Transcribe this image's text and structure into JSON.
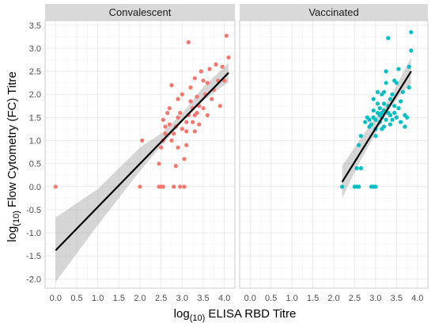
{
  "chart_data": {
    "type": "scatter",
    "xlabel": {
      "prefix": "log",
      "sub": "(10)",
      "rest": " ELISA RBD Titre"
    },
    "ylabel": {
      "prefix": "log",
      "sub": "(10)",
      "rest": " Flow Cytometry (FC) Titre"
    },
    "xlim": [
      -0.25,
      4.25
    ],
    "ylim": [
      -2.2,
      3.6
    ],
    "x_ticks": [
      0.0,
      0.5,
      1.0,
      1.5,
      2.0,
      2.5,
      3.0,
      3.5,
      4.0
    ],
    "x_tick_labels": [
      "0.0",
      "0.5",
      "1.0",
      "1.5",
      "2.0",
      "2.5",
      "3.0",
      "3.5",
      "4.0"
    ],
    "y_ticks": [
      -2.0,
      -1.5,
      -1.0,
      -0.5,
      0.0,
      0.5,
      1.0,
      1.5,
      2.0,
      2.5,
      3.0,
      3.5
    ],
    "y_tick_labels": [
      "-2.0",
      "-1.5",
      "-1.0",
      "-0.5",
      "0.0",
      "0.5",
      "1.0",
      "1.5",
      "2.0",
      "2.5",
      "3.0",
      "3.5"
    ],
    "grid": true,
    "panels": [
      {
        "name": "Convalescent",
        "color": "#F8766D",
        "fit": {
          "x": [
            0.0,
            4.1
          ],
          "y": [
            -1.38,
            2.47
          ]
        },
        "band": {
          "x": [
            0.0,
            1.0,
            2.0,
            2.5,
            3.0,
            3.5,
            4.1
          ],
          "lower": [
            -2.07,
            -0.83,
            0.34,
            0.88,
            1.4,
            1.86,
            2.27
          ],
          "upper": [
            -0.67,
            -0.05,
            0.85,
            1.15,
            1.58,
            2.16,
            2.68
          ]
        },
        "points": [
          [
            0.0,
            0.0
          ],
          [
            2.0,
            0.0
          ],
          [
            2.05,
            1.0
          ],
          [
            2.45,
            0.0
          ],
          [
            2.5,
            0.0
          ],
          [
            2.55,
            0.0
          ],
          [
            2.45,
            0.5
          ],
          [
            2.5,
            0.85
          ],
          [
            2.55,
            1.0
          ],
          [
            2.6,
            1.15
          ],
          [
            2.6,
            1.3
          ],
          [
            2.65,
            1.6
          ],
          [
            2.7,
            1.35
          ],
          [
            2.75,
            2.2
          ],
          [
            2.8,
            0.0
          ],
          [
            2.85,
            0.45
          ],
          [
            2.75,
            1.0
          ],
          [
            2.8,
            1.15
          ],
          [
            2.85,
            1.3
          ],
          [
            2.9,
            1.5
          ],
          [
            2.9,
            1.9
          ],
          [
            2.95,
            0.0
          ],
          [
            2.9,
            0.85
          ],
          [
            2.95,
            1.6
          ],
          [
            3.0,
            1.25
          ],
          [
            3.0,
            2.0
          ],
          [
            3.05,
            0.0
          ],
          [
            3.05,
            0.6
          ],
          [
            3.1,
            0.9
          ],
          [
            3.1,
            1.4
          ],
          [
            3.15,
            1.55
          ],
          [
            3.15,
            3.13
          ],
          [
            3.2,
            1.85
          ],
          [
            3.2,
            2.15
          ],
          [
            3.25,
            1.4
          ],
          [
            3.25,
            1.7
          ],
          [
            3.3,
            1.55
          ],
          [
            3.3,
            2.35
          ],
          [
            3.35,
            1.6
          ],
          [
            3.35,
            1.95
          ],
          [
            3.4,
            1.35
          ],
          [
            3.4,
            1.75
          ],
          [
            3.45,
            2.5
          ],
          [
            3.5,
            1.7
          ],
          [
            3.5,
            2.3
          ],
          [
            3.55,
            2.0
          ],
          [
            3.6,
            1.55
          ],
          [
            3.6,
            2.25
          ],
          [
            3.65,
            2.55
          ],
          [
            3.7,
            1.9
          ],
          [
            3.75,
            2.1
          ],
          [
            3.8,
            2.65
          ],
          [
            3.85,
            2.3
          ],
          [
            3.9,
            1.75
          ],
          [
            3.95,
            2.6
          ],
          [
            4.0,
            2.3
          ],
          [
            4.05,
            3.27
          ],
          [
            4.1,
            2.8
          ],
          [
            2.55,
            1.45
          ],
          [
            2.7,
            1.7
          ],
          [
            3.1,
            1.2
          ],
          [
            3.3,
            1.2
          ]
        ]
      },
      {
        "name": "Vaccinated",
        "color": "#00BFC4",
        "fit": {
          "x": [
            2.2,
            3.85
          ],
          "y": [
            0.1,
            2.5
          ]
        },
        "band": {
          "x": [
            2.2,
            2.6,
            3.0,
            3.2,
            3.4,
            3.6,
            3.85
          ],
          "lower": [
            -0.25,
            0.5,
            1.15,
            1.48,
            1.76,
            2.01,
            2.22
          ],
          "upper": [
            0.45,
            0.99,
            1.5,
            1.73,
            2.02,
            2.37,
            2.8
          ]
        },
        "points": [
          [
            2.2,
            0.0
          ],
          [
            2.5,
            0.0
          ],
          [
            2.55,
            0.0
          ],
          [
            2.6,
            0.0
          ],
          [
            2.9,
            0.0
          ],
          [
            2.95,
            0.0
          ],
          [
            3.0,
            0.0
          ],
          [
            2.55,
            0.4
          ],
          [
            2.65,
            0.4
          ],
          [
            2.6,
            0.9
          ],
          [
            2.65,
            1.1
          ],
          [
            2.75,
            1.4
          ],
          [
            2.8,
            1.5
          ],
          [
            2.85,
            1.3
          ],
          [
            2.85,
            1.45
          ],
          [
            2.9,
            1.35
          ],
          [
            2.95,
            1.5
          ],
          [
            2.95,
            1.65
          ],
          [
            3.0,
            1.25
          ],
          [
            3.0,
            1.45
          ],
          [
            3.05,
            1.6
          ],
          [
            3.05,
            1.8
          ],
          [
            3.05,
            2.05
          ],
          [
            3.1,
            1.4
          ],
          [
            3.1,
            1.55
          ],
          [
            3.1,
            1.7
          ],
          [
            3.15,
            1.5
          ],
          [
            3.15,
            1.6
          ],
          [
            3.15,
            2.0
          ],
          [
            3.2,
            1.3
          ],
          [
            3.2,
            1.65
          ],
          [
            3.2,
            1.8
          ],
          [
            3.25,
            1.45
          ],
          [
            3.25,
            2.25
          ],
          [
            3.25,
            2.5
          ],
          [
            3.3,
            1.6
          ],
          [
            3.3,
            1.75
          ],
          [
            3.3,
            3.22
          ],
          [
            3.35,
            1.55
          ],
          [
            3.35,
            1.9
          ],
          [
            3.4,
            1.45
          ],
          [
            3.4,
            2.0
          ],
          [
            3.45,
            1.6
          ],
          [
            3.45,
            1.75
          ],
          [
            3.5,
            2.25
          ],
          [
            3.5,
            1.5
          ],
          [
            3.55,
            1.7
          ],
          [
            3.55,
            2.55
          ],
          [
            3.6,
            1.4
          ],
          [
            3.6,
            1.85
          ],
          [
            3.65,
            2.05
          ],
          [
            3.7,
            1.3
          ],
          [
            3.7,
            1.55
          ],
          [
            3.75,
            1.5
          ],
          [
            3.8,
            2.15
          ],
          [
            3.8,
            2.6
          ],
          [
            3.85,
            2.95
          ],
          [
            3.85,
            3.35
          ],
          [
            3.0,
            1.1
          ],
          [
            3.15,
            1.25
          ],
          [
            3.35,
            1.35
          ],
          [
            3.45,
            2.3
          ],
          [
            2.95,
            1.9
          ],
          [
            3.2,
            2.05
          ]
        ]
      }
    ]
  }
}
